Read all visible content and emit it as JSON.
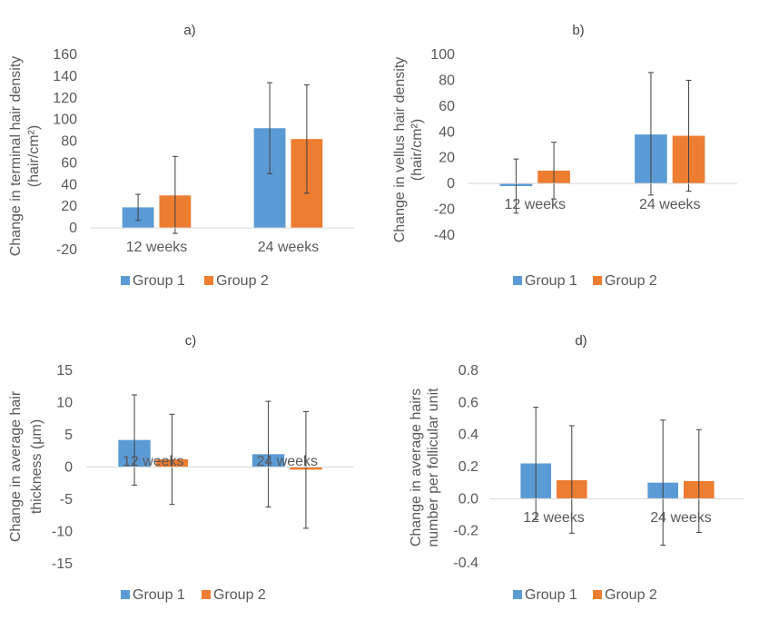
{
  "colors": {
    "group1": "#5B9BD5",
    "group2": "#ED7D31",
    "axis": "#D9D9D9",
    "text": "#595959",
    "error_bar": "#404040"
  },
  "chart_data": [
    {
      "type": "bar",
      "panel_label": "a)",
      "title": "",
      "categories": [
        "12 weeks",
        "24 weeks"
      ],
      "series": [
        {
          "name": "Group 1",
          "values": [
            19,
            92
          ],
          "err_high": [
            31,
            134
          ],
          "err_low": [
            7,
            50
          ]
        },
        {
          "name": "Group 2",
          "values": [
            30,
            82
          ],
          "err_high": [
            66,
            132
          ],
          "err_low": [
            -5,
            32
          ]
        }
      ],
      "ylabel": "Change in terminal hair density (hair/cm²)",
      "ylim": [
        -20,
        160
      ],
      "yticks": [
        -20,
        0,
        20,
        40,
        60,
        80,
        100,
        120,
        140,
        160
      ],
      "legend_position": "bottom",
      "grid": false
    },
    {
      "type": "bar",
      "panel_label": "b)",
      "title": "",
      "categories": [
        "12 weeks",
        "24 weeks"
      ],
      "series": [
        {
          "name": "Group 1",
          "values": [
            -2,
            38
          ],
          "err_high": [
            19,
            86
          ],
          "err_low": [
            -23,
            -9
          ]
        },
        {
          "name": "Group 2",
          "values": [
            10,
            37
          ],
          "err_high": [
            32,
            80
          ],
          "err_low": [
            -12,
            -6
          ]
        }
      ],
      "ylabel": "Change in vellus hair density (hair/cm²)",
      "ylim": [
        -40,
        100
      ],
      "yticks": [
        -40,
        -20,
        0,
        20,
        40,
        60,
        80,
        100
      ],
      "legend_position": "bottom",
      "grid": false
    },
    {
      "type": "bar",
      "panel_label": "c)",
      "title": "",
      "categories": [
        "12 weeks",
        "24 weeks"
      ],
      "series": [
        {
          "name": "Group 1",
          "values": [
            4.2,
            2.0
          ],
          "err_high": [
            11.2,
            10.2
          ],
          "err_low": [
            -2.8,
            -6.2
          ]
        },
        {
          "name": "Group 2",
          "values": [
            1.2,
            -0.4
          ],
          "err_high": [
            8.2,
            8.6
          ],
          "err_low": [
            -5.8,
            -9.5
          ]
        }
      ],
      "ylabel": "Change in average hair thickness (μm)",
      "ylim": [
        -15,
        15
      ],
      "yticks": [
        -15,
        -10,
        -5,
        0,
        5,
        10,
        15
      ],
      "legend_position": "bottom",
      "grid": false
    },
    {
      "type": "bar",
      "panel_label": "d)",
      "title": "",
      "categories": [
        "12 weeks",
        "24 weeks"
      ],
      "series": [
        {
          "name": "Group 1",
          "values": [
            0.22,
            0.1
          ],
          "err_high": [
            0.57,
            0.49
          ],
          "err_low": [
            -0.13,
            -0.29
          ]
        },
        {
          "name": "Group 2",
          "values": [
            0.115,
            0.11
          ],
          "err_high": [
            0.455,
            0.43
          ],
          "err_low": [
            -0.215,
            -0.21
          ]
        }
      ],
      "ylabel": "Change in average hairs number per follicular unit",
      "ylim": [
        -0.4,
        0.8
      ],
      "yticks": [
        -0.4,
        -0.2,
        0.0,
        0.2,
        0.4,
        0.6,
        0.8
      ],
      "legend_position": "bottom",
      "grid": false
    }
  ]
}
